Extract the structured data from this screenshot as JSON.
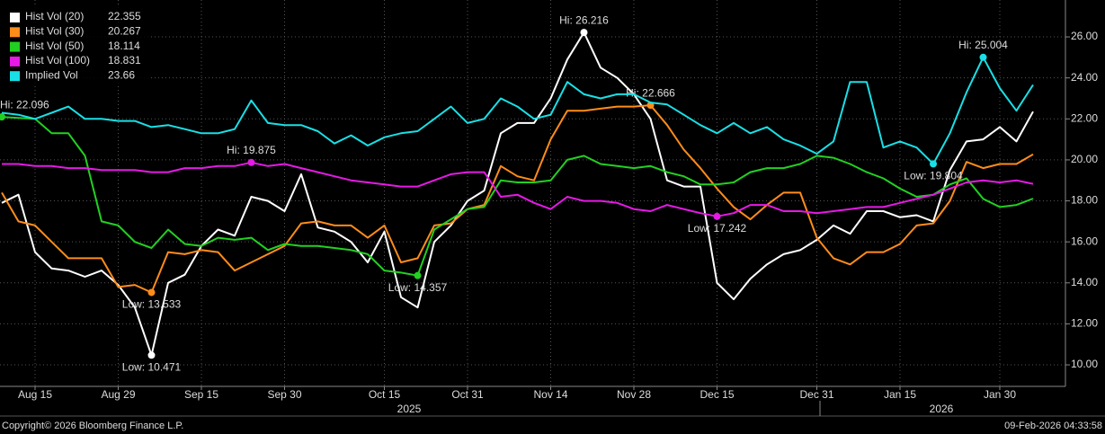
{
  "chart_data": {
    "type": "line",
    "categories": [
      null,
      null,
      "Aug 15",
      null,
      null,
      null,
      null,
      "Aug 29",
      null,
      null,
      null,
      null,
      "Sep 15",
      null,
      null,
      null,
      null,
      "Sep 30",
      null,
      null,
      null,
      null,
      null,
      "Oct 15",
      null,
      null,
      null,
      null,
      "Oct 31",
      null,
      null,
      null,
      null,
      "Nov 14",
      null,
      null,
      null,
      null,
      "Nov 28",
      null,
      null,
      null,
      null,
      "Dec 15",
      null,
      null,
      null,
      null,
      null,
      "Dec 31",
      null,
      null,
      null,
      null,
      "Jan 15",
      null,
      null,
      null,
      null,
      null,
      "Jan 30",
      null,
      null
    ],
    "year_labels": [
      "2025",
      "2026"
    ],
    "series": [
      {
        "name": "Hist Vol (20)",
        "color": "#ffffff",
        "values": [
          17.9,
          18.3,
          15.5,
          14.7,
          14.6,
          14.3,
          14.6,
          13.9,
          12.8,
          10.471,
          14.0,
          14.4,
          15.8,
          16.6,
          16.3,
          18.2,
          18.0,
          17.5,
          19.3,
          16.7,
          16.5,
          16.0,
          15.0,
          16.5,
          13.3,
          12.8,
          16.0,
          16.8,
          18.0,
          18.5,
          21.3,
          21.8,
          21.8,
          23.0,
          24.9,
          26.216,
          24.5,
          24.0,
          23.2,
          22.0,
          19.0,
          18.7,
          18.7,
          14.0,
          13.2,
          14.2,
          14.9,
          15.4,
          15.6,
          16.1,
          16.8,
          16.4,
          17.5,
          17.5,
          17.2,
          17.3,
          17.0,
          19.5,
          20.9,
          21.0,
          21.6,
          20.9,
          22.355
        ],
        "value_labels": [
          null,
          null,
          null,
          null,
          null,
          null,
          null,
          null,
          null,
          "Low: 10.471",
          null,
          null,
          null,
          null,
          null,
          null,
          null,
          null,
          null,
          null,
          null,
          null,
          null,
          null,
          null,
          null,
          null,
          null,
          null,
          null,
          null,
          null,
          null,
          null,
          null,
          "Hi: 26.216",
          null,
          null,
          null,
          null,
          null,
          null,
          null,
          null,
          null,
          null,
          null,
          null,
          null,
          null,
          null,
          null,
          null,
          null,
          null,
          null,
          null,
          null,
          null,
          null,
          null,
          null,
          null
        ]
      },
      {
        "name": "Hist Vol (30)",
        "color": "#ff8c1a",
        "values": [
          18.4,
          17.0,
          16.8,
          16.0,
          15.2,
          15.2,
          15.2,
          13.8,
          13.9,
          13.533,
          15.5,
          15.4,
          15.6,
          15.5,
          14.6,
          15.0,
          15.4,
          15.8,
          16.9,
          17.0,
          16.8,
          16.8,
          16.2,
          16.8,
          15.0,
          15.2,
          16.8,
          16.9,
          17.6,
          17.8,
          19.7,
          19.2,
          19.0,
          21.0,
          22.4,
          22.4,
          22.5,
          22.6,
          22.6,
          22.666,
          21.7,
          20.5,
          19.6,
          18.6,
          17.7,
          17.1,
          17.8,
          18.4,
          18.4,
          16.2,
          15.2,
          14.9,
          15.5,
          15.5,
          15.9,
          16.8,
          16.9,
          18.0,
          19.9,
          19.6,
          19.8,
          19.8,
          20.267
        ],
        "value_labels": [
          null,
          null,
          null,
          null,
          null,
          null,
          null,
          null,
          null,
          "Low: 13.533",
          null,
          null,
          null,
          null,
          null,
          null,
          null,
          null,
          null,
          null,
          null,
          null,
          null,
          null,
          null,
          null,
          null,
          null,
          null,
          null,
          null,
          null,
          null,
          null,
          null,
          null,
          null,
          null,
          null,
          "Hi: 22.666",
          null,
          null,
          null,
          null,
          null,
          null,
          null,
          null,
          null,
          null,
          null,
          null,
          null,
          null,
          null,
          null,
          null,
          null,
          null,
          null,
          null,
          null,
          null
        ]
      },
      {
        "name": "Hist Vol (50)",
        "color": "#22d022",
        "values": [
          22.096,
          22.05,
          22.0,
          21.3,
          21.3,
          20.2,
          17.0,
          16.8,
          16.0,
          15.7,
          16.6,
          15.9,
          15.8,
          16.2,
          16.1,
          16.2,
          15.6,
          15.9,
          15.8,
          15.8,
          15.7,
          15.6,
          15.4,
          14.6,
          14.5,
          14.357,
          16.6,
          17.1,
          17.6,
          17.7,
          19.0,
          18.9,
          18.9,
          19.0,
          20.0,
          20.2,
          19.8,
          19.7,
          19.6,
          19.7,
          19.4,
          19.2,
          18.8,
          18.8,
          18.9,
          19.4,
          19.6,
          19.6,
          19.8,
          20.2,
          20.1,
          19.8,
          19.4,
          19.1,
          18.6,
          18.2,
          18.3,
          18.8,
          19.1,
          18.1,
          17.7,
          17.8,
          18.114
        ],
        "value_labels": [
          "Hi: 22.096",
          null,
          null,
          null,
          null,
          null,
          null,
          null,
          null,
          null,
          null,
          null,
          null,
          null,
          null,
          null,
          null,
          null,
          null,
          null,
          null,
          null,
          null,
          null,
          null,
          "Low: 14.357",
          null,
          null,
          null,
          null,
          null,
          null,
          null,
          null,
          null,
          null,
          null,
          null,
          null,
          null,
          null,
          null,
          null,
          null,
          null,
          null,
          null,
          null,
          null,
          null,
          null,
          null,
          null,
          null,
          null,
          null,
          null,
          null,
          null,
          null,
          null,
          null,
          null
        ]
      },
      {
        "name": "Hist Vol (100)",
        "color": "#e619e6",
        "values": [
          19.8,
          19.8,
          19.7,
          19.7,
          19.6,
          19.6,
          19.5,
          19.5,
          19.5,
          19.4,
          19.4,
          19.6,
          19.6,
          19.7,
          19.7,
          19.875,
          19.7,
          19.8,
          19.6,
          19.4,
          19.2,
          19.0,
          18.9,
          18.8,
          18.7,
          18.7,
          19.0,
          19.3,
          19.4,
          19.4,
          18.2,
          18.3,
          17.9,
          17.6,
          18.2,
          18.0,
          18.0,
          17.9,
          17.6,
          17.5,
          17.8,
          17.6,
          17.4,
          17.242,
          17.4,
          17.8,
          17.8,
          17.5,
          17.5,
          17.4,
          17.5,
          17.6,
          17.7,
          17.7,
          17.9,
          18.1,
          18.3,
          18.6,
          18.9,
          19.0,
          18.9,
          19.0,
          18.831
        ],
        "value_labels": [
          null,
          null,
          null,
          null,
          null,
          null,
          null,
          null,
          null,
          null,
          null,
          null,
          null,
          null,
          null,
          "Hi: 19.875",
          null,
          null,
          null,
          null,
          null,
          null,
          null,
          null,
          null,
          null,
          null,
          null,
          null,
          null,
          null,
          null,
          null,
          null,
          null,
          null,
          null,
          null,
          null,
          null,
          null,
          null,
          null,
          "Low: 17.242",
          null,
          null,
          null,
          null,
          null,
          null,
          null,
          null,
          null,
          null,
          null,
          null,
          null,
          null,
          null,
          null,
          null,
          null,
          null
        ]
      },
      {
        "name": "Implied Vol",
        "color": "#19e0e6",
        "values": [
          22.3,
          22.2,
          22.0,
          22.3,
          22.6,
          22.0,
          22.0,
          21.9,
          21.9,
          21.6,
          21.7,
          21.5,
          21.3,
          21.3,
          21.5,
          22.9,
          21.8,
          21.7,
          21.7,
          21.4,
          20.8,
          21.2,
          20.7,
          21.1,
          21.3,
          21.4,
          22.0,
          22.6,
          21.8,
          22.0,
          23.0,
          22.6,
          22.0,
          22.2,
          23.8,
          23.2,
          23.0,
          23.2,
          23.2,
          22.8,
          22.7,
          22.2,
          21.7,
          21.3,
          21.8,
          21.3,
          21.6,
          21.0,
          20.7,
          20.3,
          20.9,
          23.8,
          23.8,
          20.6,
          20.9,
          20.6,
          19.804,
          21.3,
          23.3,
          25.004,
          23.5,
          22.4,
          23.66
        ],
        "value_labels": [
          null,
          null,
          null,
          null,
          null,
          null,
          null,
          null,
          null,
          null,
          null,
          null,
          null,
          null,
          null,
          null,
          null,
          null,
          null,
          null,
          null,
          null,
          null,
          null,
          null,
          null,
          null,
          null,
          null,
          null,
          null,
          null,
          null,
          null,
          null,
          null,
          null,
          null,
          null,
          null,
          null,
          null,
          null,
          null,
          null,
          null,
          null,
          null,
          null,
          null,
          null,
          null,
          null,
          null,
          null,
          null,
          "Low: 19.804",
          null,
          null,
          "Hi: 25.004",
          null,
          null,
          null
        ]
      }
    ],
    "ylim": [
      8.95,
      27.8
    ],
    "yticks": [
      {
        "value": 10,
        "label": "10.00"
      },
      {
        "value": 12,
        "label": "12.00"
      },
      {
        "value": 14,
        "label": "14.00"
      },
      {
        "value": 16,
        "label": "16.00"
      },
      {
        "value": 18,
        "label": "18.00"
      },
      {
        "value": 20,
        "label": "20.00"
      },
      {
        "value": 22,
        "label": "22.00"
      },
      {
        "value": 24,
        "label": "24.00"
      },
      {
        "value": 26,
        "label": "26.00"
      }
    ],
    "grid": true,
    "legend": "top-left",
    "footer_left": "Copyright© 2026 Bloomberg Finance L.P.",
    "footer_right": "09-Feb-2026 04:33:58"
  }
}
